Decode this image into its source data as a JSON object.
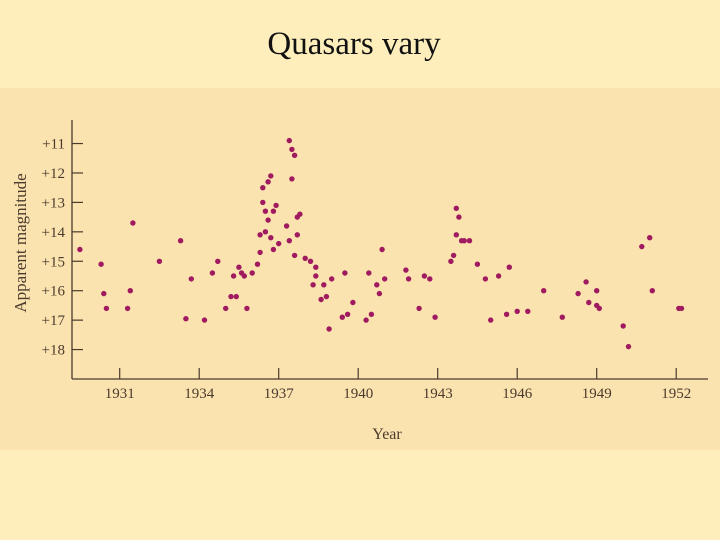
{
  "slide": {
    "title": "Quasars vary"
  },
  "colors": {
    "background": "#fdeebb",
    "panel": "#fbe3b0",
    "points": "#a01a60",
    "axis": "#4a3a2c"
  },
  "chart_data": {
    "type": "scatter",
    "title": "",
    "xlabel": "Year",
    "ylabel": "Apparent magnitude",
    "xlim": [
      1929.2,
      1953.2
    ],
    "ylim": [
      10.2,
      19.0
    ],
    "y_inverted": true,
    "grid": false,
    "legend": "none",
    "x_ticks": [
      1931,
      1934,
      1937,
      1940,
      1943,
      1946,
      1949,
      1952
    ],
    "x_tick_labels": [
      "1931",
      "1934",
      "1937",
      "1940",
      "1943",
      "1946",
      "1949",
      "1952"
    ],
    "y_ticks": [
      11,
      12,
      13,
      14,
      15,
      16,
      17,
      18
    ],
    "y_tick_labels": [
      "+11",
      "+12",
      "+13",
      "+14",
      "+15",
      "+16",
      "+17",
      "+18"
    ],
    "series": [
      {
        "points": [
          [
            1929.5,
            14.6
          ],
          [
            1930.3,
            15.1
          ],
          [
            1930.4,
            16.1
          ],
          [
            1930.5,
            16.6
          ],
          [
            1931.3,
            16.6
          ],
          [
            1931.4,
            16.0
          ],
          [
            1931.5,
            13.7
          ],
          [
            1932.5,
            15.0
          ],
          [
            1933.3,
            14.3
          ],
          [
            1933.5,
            16.95
          ],
          [
            1933.7,
            15.6
          ],
          [
            1934.2,
            17.0
          ],
          [
            1934.5,
            15.4
          ],
          [
            1934.7,
            15.0
          ],
          [
            1935.0,
            16.6
          ],
          [
            1935.2,
            16.2
          ],
          [
            1935.3,
            15.5
          ],
          [
            1935.4,
            16.2
          ],
          [
            1935.5,
            15.2
          ],
          [
            1935.6,
            15.4
          ],
          [
            1935.7,
            15.5
          ],
          [
            1935.8,
            16.6
          ],
          [
            1936.0,
            15.4
          ],
          [
            1936.2,
            15.1
          ],
          [
            1936.3,
            14.1
          ],
          [
            1936.3,
            14.7
          ],
          [
            1936.4,
            13.0
          ],
          [
            1936.4,
            12.5
          ],
          [
            1936.5,
            13.3
          ],
          [
            1936.5,
            14.0
          ],
          [
            1936.6,
            12.3
          ],
          [
            1936.6,
            13.6
          ],
          [
            1936.7,
            12.1
          ],
          [
            1936.7,
            14.2
          ],
          [
            1936.8,
            13.3
          ],
          [
            1936.8,
            14.6
          ],
          [
            1936.9,
            13.1
          ],
          [
            1937.0,
            14.4
          ],
          [
            1937.3,
            13.8
          ],
          [
            1937.4,
            10.9
          ],
          [
            1937.4,
            14.3
          ],
          [
            1937.5,
            11.2
          ],
          [
            1937.5,
            12.2
          ],
          [
            1937.6,
            11.4
          ],
          [
            1937.6,
            14.8
          ],
          [
            1937.7,
            13.5
          ],
          [
            1937.7,
            14.1
          ],
          [
            1937.8,
            13.4
          ],
          [
            1938.0,
            14.9
          ],
          [
            1938.2,
            15.0
          ],
          [
            1938.3,
            15.8
          ],
          [
            1938.4,
            15.2
          ],
          [
            1938.4,
            15.5
          ],
          [
            1938.6,
            16.3
          ],
          [
            1938.7,
            15.8
          ],
          [
            1938.8,
            16.2
          ],
          [
            1938.9,
            17.3
          ],
          [
            1939.0,
            15.6
          ],
          [
            1939.4,
            16.9
          ],
          [
            1939.5,
            15.4
          ],
          [
            1939.6,
            16.8
          ],
          [
            1939.8,
            16.4
          ],
          [
            1940.3,
            17.0
          ],
          [
            1940.4,
            15.4
          ],
          [
            1940.5,
            16.8
          ],
          [
            1940.7,
            15.8
          ],
          [
            1940.8,
            16.1
          ],
          [
            1940.9,
            14.6
          ],
          [
            1941.0,
            15.6
          ],
          [
            1941.8,
            15.3
          ],
          [
            1941.9,
            15.6
          ],
          [
            1942.3,
            16.6
          ],
          [
            1942.5,
            15.5
          ],
          [
            1942.7,
            15.6
          ],
          [
            1942.9,
            16.9
          ],
          [
            1943.5,
            15.0
          ],
          [
            1943.6,
            14.8
          ],
          [
            1943.7,
            13.2
          ],
          [
            1943.7,
            14.1
          ],
          [
            1943.8,
            13.5
          ],
          [
            1943.9,
            14.3
          ],
          [
            1944.0,
            14.3
          ],
          [
            1944.2,
            14.3
          ],
          [
            1944.5,
            15.1
          ],
          [
            1944.8,
            15.6
          ],
          [
            1945.0,
            17.0
          ],
          [
            1945.3,
            15.5
          ],
          [
            1945.6,
            16.8
          ],
          [
            1945.7,
            15.2
          ],
          [
            1946.0,
            16.7
          ],
          [
            1946.4,
            16.7
          ],
          [
            1947.0,
            16.0
          ],
          [
            1947.7,
            16.9
          ],
          [
            1948.3,
            16.1
          ],
          [
            1948.6,
            15.7
          ],
          [
            1948.7,
            16.4
          ],
          [
            1949.0,
            16.5
          ],
          [
            1949.0,
            16.0
          ],
          [
            1949.1,
            16.6
          ],
          [
            1950.0,
            17.2
          ],
          [
            1950.2,
            17.9
          ],
          [
            1950.7,
            14.5
          ],
          [
            1951.0,
            14.2
          ],
          [
            1951.1,
            16.0
          ],
          [
            1952.1,
            16.6
          ],
          [
            1952.2,
            16.6
          ]
        ]
      }
    ]
  }
}
